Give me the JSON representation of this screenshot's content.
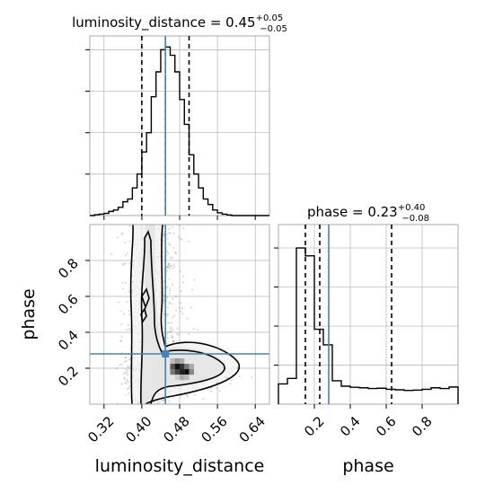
{
  "chart_data": [
    {
      "panel": "luminosity_distance marginal",
      "type": "histogram",
      "title_main": "luminosity_distance = 0.45",
      "title_sup": "+0.05",
      "title_sub": "−0.05",
      "xlim": [
        0.29,
        0.67
      ],
      "bin_edges": [
        0.29,
        0.3,
        0.31,
        0.32,
        0.33,
        0.34,
        0.35,
        0.36,
        0.37,
        0.38,
        0.39,
        0.4,
        0.41,
        0.42,
        0.43,
        0.44,
        0.45,
        0.46,
        0.47,
        0.48,
        0.49,
        0.5,
        0.51,
        0.52,
        0.53,
        0.54,
        0.55,
        0.56,
        0.57,
        0.58,
        0.59,
        0.6,
        0.61,
        0.62,
        0.63,
        0.64,
        0.65,
        0.66,
        0.67
      ],
      "counts": [
        0,
        3,
        5,
        8,
        15,
        20,
        30,
        50,
        60,
        100,
        150,
        230,
        300,
        430,
        520,
        600,
        610,
        580,
        520,
        420,
        330,
        220,
        150,
        100,
        60,
        40,
        20,
        10,
        5,
        2,
        0,
        0,
        0,
        0,
        0,
        0,
        0,
        0
      ],
      "ylim": [
        0,
        650
      ],
      "quantile_lines": [
        0.4,
        0.45,
        0.5
      ],
      "truth": 0.45
    },
    {
      "panel": "phase marginal",
      "type": "histogram",
      "title_main": "phase = 0.23",
      "title_sup": "+0.40",
      "title_sub": "−0.08",
      "xlim": [
        0.0,
        1.0
      ],
      "xticks": [
        "0.2",
        "0.4",
        "0.6",
        "0.8"
      ],
      "xlabel": "phase",
      "bin_edges": [
        0.0,
        0.05,
        0.1,
        0.15,
        0.2,
        0.25,
        0.3,
        0.35,
        0.4,
        0.45,
        0.5,
        0.55,
        0.6,
        0.65,
        0.7,
        0.75,
        0.8,
        0.85,
        0.9,
        0.95,
        1.0
      ],
      "counts": [
        130,
        165,
        1000,
        950,
        480,
        380,
        150,
        115,
        108,
        105,
        100,
        102,
        95,
        92,
        88,
        90,
        95,
        105,
        100,
        110
      ],
      "ylim": [
        0,
        1150
      ],
      "quantile_lines": [
        0.15,
        0.23,
        0.63
      ],
      "truth": 0.28
    },
    {
      "panel": "phase vs luminosity_distance",
      "type": "scatter-density",
      "xlabel": "luminosity_distance",
      "ylabel": "phase",
      "xticks": [
        "0.32",
        "0.40",
        "0.48",
        "0.56",
        "0.64"
      ],
      "yticks": [
        "0.2",
        "0.4",
        "0.6",
        "0.8"
      ],
      "xlim": [
        0.29,
        0.67
      ],
      "ylim": [
        0.0,
        1.0
      ],
      "truth": [
        0.45,
        0.28
      ],
      "density_peak": [
        0.48,
        0.2
      ]
    }
  ]
}
